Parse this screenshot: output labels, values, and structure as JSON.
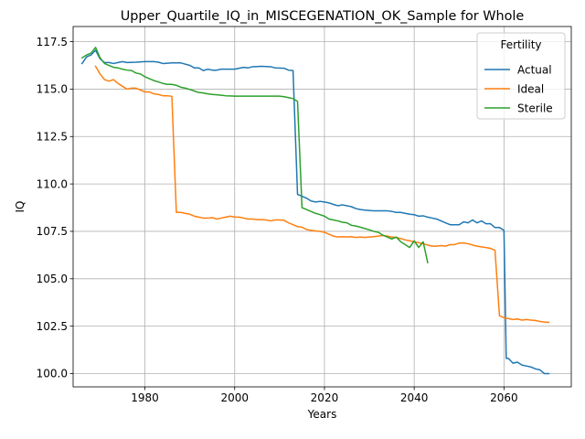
{
  "chart_data": {
    "type": "line",
    "title": "Upper_Quartile_IQ_in_MISCEGENATION_OK_Sample for Whole",
    "xlabel": "Years",
    "ylabel": "IQ",
    "xlim": [
      1964,
      2075
    ],
    "ylim": [
      99.3,
      118.3
    ],
    "xticks": [
      1980,
      2000,
      2020,
      2040,
      2060
    ],
    "yticks": [
      100.0,
      102.5,
      105.0,
      107.5,
      110.0,
      112.5,
      115.0,
      117.5
    ],
    "grid": true,
    "legend": {
      "title": "Fertility",
      "position": "upper right"
    },
    "series": [
      {
        "name": "Actual",
        "color": "#1f77b4",
        "points": [
          [
            1966,
            116.35
          ],
          [
            1967,
            116.7
          ],
          [
            1968,
            116.8
          ],
          [
            1969,
            117.05
          ],
          [
            1970,
            116.6
          ],
          [
            1971,
            116.4
          ],
          [
            1972,
            116.4
          ],
          [
            1973,
            116.35
          ],
          [
            1974,
            116.4
          ],
          [
            1975,
            116.45
          ],
          [
            1976,
            116.4
          ],
          [
            1978,
            116.42
          ],
          [
            1980,
            116.45
          ],
          [
            1982,
            116.45
          ],
          [
            1983,
            116.42
          ],
          [
            1984,
            116.35
          ],
          [
            1986,
            116.38
          ],
          [
            1988,
            116.38
          ],
          [
            1990,
            116.25
          ],
          [
            1991,
            116.12
          ],
          [
            1992,
            116.12
          ],
          [
            1993,
            115.98
          ],
          [
            1994,
            116.05
          ],
          [
            1995,
            116.0
          ],
          [
            1996,
            116.0
          ],
          [
            1997,
            116.05
          ],
          [
            1998,
            116.05
          ],
          [
            2000,
            116.05
          ],
          [
            2001,
            116.1
          ],
          [
            2002,
            116.15
          ],
          [
            2003,
            116.12
          ],
          [
            2004,
            116.18
          ],
          [
            2006,
            116.2
          ],
          [
            2008,
            116.18
          ],
          [
            2009,
            116.12
          ],
          [
            2011,
            116.1
          ],
          [
            2012,
            116.0
          ],
          [
            2013,
            115.98
          ],
          [
            2014,
            109.45
          ],
          [
            2015,
            109.35
          ],
          [
            2016,
            109.25
          ],
          [
            2017,
            109.1
          ],
          [
            2018,
            109.05
          ],
          [
            2019,
            109.08
          ],
          [
            2020,
            109.05
          ],
          [
            2021,
            109.0
          ],
          [
            2022,
            108.92
          ],
          [
            2023,
            108.85
          ],
          [
            2024,
            108.9
          ],
          [
            2025,
            108.85
          ],
          [
            2026,
            108.8
          ],
          [
            2027,
            108.7
          ],
          [
            2028,
            108.65
          ],
          [
            2029,
            108.62
          ],
          [
            2030,
            108.6
          ],
          [
            2031,
            108.58
          ],
          [
            2034,
            108.58
          ],
          [
            2035,
            108.55
          ],
          [
            2036,
            108.5
          ],
          [
            2037,
            108.5
          ],
          [
            2038,
            108.45
          ],
          [
            2039,
            108.4
          ],
          [
            2040,
            108.38
          ],
          [
            2041,
            108.3
          ],
          [
            2042,
            108.32
          ],
          [
            2043,
            108.25
          ],
          [
            2044,
            108.2
          ],
          [
            2045,
            108.15
          ],
          [
            2046,
            108.05
          ],
          [
            2047,
            107.95
          ],
          [
            2048,
            107.85
          ],
          [
            2049,
            107.85
          ],
          [
            2050,
            107.85
          ],
          [
            2051,
            108.0
          ],
          [
            2052,
            107.95
          ],
          [
            2053,
            108.1
          ],
          [
            2054,
            107.95
          ],
          [
            2055,
            108.05
          ],
          [
            2056,
            107.9
          ],
          [
            2057,
            107.9
          ],
          [
            2058,
            107.7
          ],
          [
            2059,
            107.7
          ],
          [
            2060,
            107.55
          ],
          [
            2060.5,
            100.8
          ],
          [
            2061,
            100.8
          ],
          [
            2062,
            100.55
          ],
          [
            2063,
            100.6
          ],
          [
            2064,
            100.45
          ],
          [
            2065,
            100.4
          ],
          [
            2066,
            100.35
          ],
          [
            2067,
            100.25
          ],
          [
            2068,
            100.2
          ],
          [
            2069,
            100.0
          ],
          [
            2070,
            100.0
          ]
        ]
      },
      {
        "name": "Ideal",
        "color": "#ff7f0e",
        "points": [
          [
            1969,
            116.2
          ],
          [
            1970,
            115.8
          ],
          [
            1971,
            115.5
          ],
          [
            1972,
            115.42
          ],
          [
            1973,
            115.5
          ],
          [
            1974,
            115.3
          ],
          [
            1975,
            115.15
          ],
          [
            1976,
            115.0
          ],
          [
            1977,
            115.05
          ],
          [
            1978,
            115.05
          ],
          [
            1979,
            114.95
          ],
          [
            1980,
            114.85
          ],
          [
            1981,
            114.85
          ],
          [
            1982,
            114.75
          ],
          [
            1983,
            114.72
          ],
          [
            1984,
            114.65
          ],
          [
            1985,
            114.65
          ],
          [
            1986,
            114.62
          ],
          [
            1987,
            108.5
          ],
          [
            1988,
            108.5
          ],
          [
            1989,
            108.45
          ],
          [
            1990,
            108.4
          ],
          [
            1991,
            108.3
          ],
          [
            1992,
            108.25
          ],
          [
            1993,
            108.2
          ],
          [
            1994,
            108.2
          ],
          [
            1995,
            108.22
          ],
          [
            1996,
            108.15
          ],
          [
            1997,
            108.2
          ],
          [
            1998,
            108.25
          ],
          [
            1999,
            108.3
          ],
          [
            2000,
            108.25
          ],
          [
            2001,
            108.25
          ],
          [
            2002,
            108.2
          ],
          [
            2003,
            108.15
          ],
          [
            2004,
            108.15
          ],
          [
            2005,
            108.12
          ],
          [
            2006,
            108.12
          ],
          [
            2007,
            108.1
          ],
          [
            2008,
            108.05
          ],
          [
            2009,
            108.1
          ],
          [
            2010,
            108.1
          ],
          [
            2011,
            108.08
          ],
          [
            2012,
            107.95
          ],
          [
            2013,
            107.85
          ],
          [
            2014,
            107.75
          ],
          [
            2015,
            107.72
          ],
          [
            2016,
            107.6
          ],
          [
            2017,
            107.55
          ],
          [
            2018,
            107.52
          ],
          [
            2019,
            107.5
          ],
          [
            2020,
            107.45
          ],
          [
            2021,
            107.35
          ],
          [
            2022,
            107.25
          ],
          [
            2023,
            107.2
          ],
          [
            2024,
            107.22
          ],
          [
            2025,
            107.2
          ],
          [
            2026,
            107.22
          ],
          [
            2027,
            107.18
          ],
          [
            2028,
            107.2
          ],
          [
            2029,
            107.18
          ],
          [
            2030,
            107.2
          ],
          [
            2031,
            107.22
          ],
          [
            2032,
            107.25
          ],
          [
            2033,
            107.28
          ],
          [
            2034,
            107.25
          ],
          [
            2035,
            107.2
          ],
          [
            2036,
            107.18
          ],
          [
            2037,
            107.12
          ],
          [
            2038,
            107.05
          ],
          [
            2039,
            107.0
          ],
          [
            2040,
            106.95
          ],
          [
            2041,
            106.9
          ],
          [
            2042,
            106.85
          ],
          [
            2043,
            106.78
          ],
          [
            2044,
            106.72
          ],
          [
            2045,
            106.72
          ],
          [
            2046,
            106.75
          ],
          [
            2047,
            106.72
          ],
          [
            2048,
            106.8
          ],
          [
            2049,
            106.8
          ],
          [
            2050,
            106.88
          ],
          [
            2051,
            106.88
          ],
          [
            2052,
            106.85
          ],
          [
            2053,
            106.78
          ],
          [
            2054,
            106.72
          ],
          [
            2055,
            106.68
          ],
          [
            2056,
            106.65
          ],
          [
            2057,
            106.6
          ],
          [
            2058,
            106.5
          ],
          [
            2059,
            103.05
          ],
          [
            2060,
            102.95
          ],
          [
            2061,
            102.9
          ],
          [
            2062,
            102.85
          ],
          [
            2063,
            102.88
          ],
          [
            2064,
            102.82
          ],
          [
            2065,
            102.85
          ],
          [
            2066,
            102.82
          ],
          [
            2067,
            102.8
          ],
          [
            2068,
            102.75
          ],
          [
            2069,
            102.72
          ],
          [
            2070,
            102.7
          ]
        ]
      },
      {
        "name": "Sterile",
        "color": "#2ca02c",
        "points": [
          [
            1966,
            116.65
          ],
          [
            1967,
            116.8
          ],
          [
            1968,
            116.9
          ],
          [
            1969,
            117.2
          ],
          [
            1970,
            116.65
          ],
          [
            1971,
            116.35
          ],
          [
            1972,
            116.25
          ],
          [
            1973,
            116.15
          ],
          [
            1974,
            116.12
          ],
          [
            1975,
            116.05
          ],
          [
            1976,
            116.0
          ],
          [
            1977,
            115.98
          ],
          [
            1978,
            115.85
          ],
          [
            1979,
            115.8
          ],
          [
            1980,
            115.65
          ],
          [
            1981,
            115.55
          ],
          [
            1982,
            115.45
          ],
          [
            1983,
            115.38
          ],
          [
            1984,
            115.3
          ],
          [
            1985,
            115.25
          ],
          [
            1986,
            115.25
          ],
          [
            1987,
            115.2
          ],
          [
            1988,
            115.1
          ],
          [
            1989,
            115.05
          ],
          [
            1990,
            114.98
          ],
          [
            1991,
            114.9
          ],
          [
            1992,
            114.82
          ],
          [
            1993,
            114.8
          ],
          [
            1994,
            114.75
          ],
          [
            1995,
            114.72
          ],
          [
            1996,
            114.7
          ],
          [
            1997,
            114.68
          ],
          [
            1998,
            114.65
          ],
          [
            2000,
            114.63
          ],
          [
            2005,
            114.63
          ],
          [
            2010,
            114.63
          ],
          [
            2011,
            114.6
          ],
          [
            2012,
            114.55
          ],
          [
            2013,
            114.5
          ],
          [
            2014,
            114.35
          ],
          [
            2015,
            108.75
          ],
          [
            2016,
            108.65
          ],
          [
            2017,
            108.55
          ],
          [
            2018,
            108.45
          ],
          [
            2019,
            108.38
          ],
          [
            2020,
            108.3
          ],
          [
            2021,
            108.15
          ],
          [
            2022,
            108.1
          ],
          [
            2023,
            108.05
          ],
          [
            2024,
            107.98
          ],
          [
            2025,
            107.95
          ],
          [
            2026,
            107.82
          ],
          [
            2027,
            107.78
          ],
          [
            2028,
            107.72
          ],
          [
            2029,
            107.65
          ],
          [
            2030,
            107.58
          ],
          [
            2031,
            107.5
          ],
          [
            2032,
            107.45
          ],
          [
            2033,
            107.3
          ],
          [
            2034,
            107.2
          ],
          [
            2035,
            107.1
          ],
          [
            2036,
            107.2
          ],
          [
            2037,
            106.95
          ],
          [
            2038,
            106.8
          ],
          [
            2039,
            106.65
          ],
          [
            2040,
            107.0
          ],
          [
            2041,
            106.65
          ],
          [
            2042,
            106.95
          ],
          [
            2043,
            105.85
          ]
        ]
      }
    ]
  }
}
